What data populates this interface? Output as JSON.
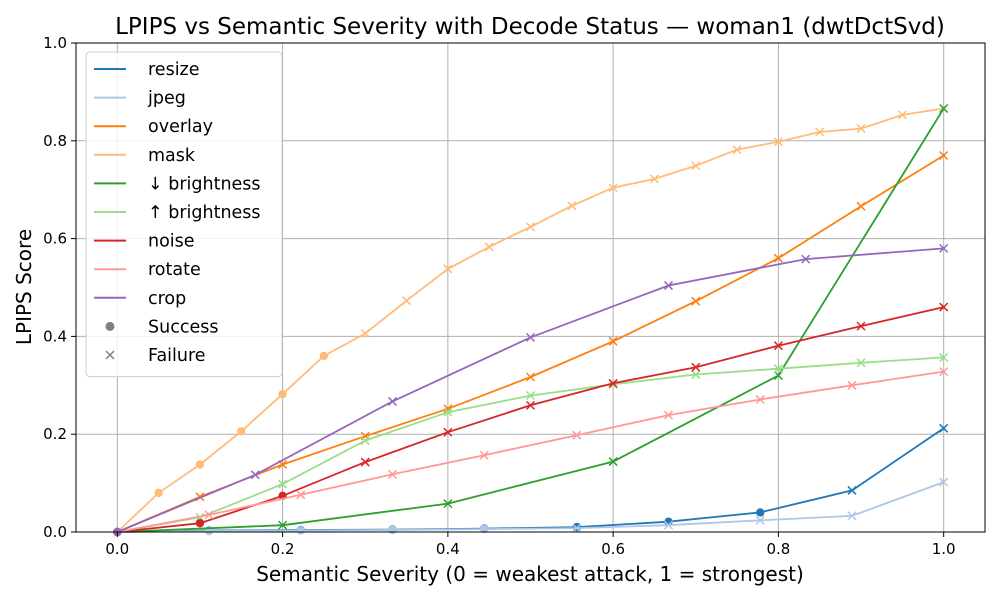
{
  "chart_data": {
    "type": "line",
    "title": "LPIPS vs Semantic Severity with Decode Status — woman1 (dwtDctSvd)",
    "xlabel": "Semantic Severity (0 = weakest attack, 1 = strongest)",
    "ylabel": "LPIPS Score",
    "xlim": [
      -0.05,
      1.05
    ],
    "ylim": [
      0.0,
      1.0
    ],
    "xticks": [
      "0.0",
      "0.2",
      "0.4",
      "0.6",
      "0.8",
      "1.0"
    ],
    "yticks": [
      "0.0",
      "0.2",
      "0.4",
      "0.6",
      "0.8",
      "1.0"
    ],
    "grid": true,
    "legend_position": "top-left",
    "marker_legend": [
      {
        "label": "Success",
        "marker": "circle"
      },
      {
        "label": "Failure",
        "marker": "x"
      }
    ],
    "series": [
      {
        "name": "resize",
        "color": "#1f77b4",
        "points": [
          {
            "x": 0.0,
            "y": 0.0,
            "status": "success"
          },
          {
            "x": 0.111,
            "y": 0.003,
            "status": "success"
          },
          {
            "x": 0.222,
            "y": 0.004,
            "status": "success"
          },
          {
            "x": 0.333,
            "y": 0.005,
            "status": "success"
          },
          {
            "x": 0.444,
            "y": 0.007,
            "status": "success"
          },
          {
            "x": 0.556,
            "y": 0.01,
            "status": "success"
          },
          {
            "x": 0.667,
            "y": 0.021,
            "status": "success"
          },
          {
            "x": 0.778,
            "y": 0.04,
            "status": "success"
          },
          {
            "x": 0.889,
            "y": 0.085,
            "status": "failure"
          },
          {
            "x": 1.0,
            "y": 0.212,
            "status": "failure"
          }
        ]
      },
      {
        "name": "jpeg",
        "color": "#aec7e8",
        "points": [
          {
            "x": 0.0,
            "y": 0.0,
            "status": "success"
          },
          {
            "x": 0.111,
            "y": 0.002,
            "status": "success"
          },
          {
            "x": 0.222,
            "y": 0.003,
            "status": "success"
          },
          {
            "x": 0.333,
            "y": 0.004,
            "status": "success"
          },
          {
            "x": 0.444,
            "y": 0.006,
            "status": "success"
          },
          {
            "x": 0.556,
            "y": 0.008,
            "status": "failure"
          },
          {
            "x": 0.667,
            "y": 0.014,
            "status": "failure"
          },
          {
            "x": 0.778,
            "y": 0.024,
            "status": "failure"
          },
          {
            "x": 0.889,
            "y": 0.033,
            "status": "failure"
          },
          {
            "x": 1.0,
            "y": 0.102,
            "status": "failure"
          }
        ]
      },
      {
        "name": "overlay",
        "color": "#ff7f0e",
        "points": [
          {
            "x": 0.0,
            "y": 0.0,
            "status": "success"
          },
          {
            "x": 0.1,
            "y": 0.072,
            "status": "failure"
          },
          {
            "x": 0.2,
            "y": 0.138,
            "status": "failure"
          },
          {
            "x": 0.3,
            "y": 0.196,
            "status": "failure"
          },
          {
            "x": 0.4,
            "y": 0.252,
            "status": "failure"
          },
          {
            "x": 0.5,
            "y": 0.317,
            "status": "failure"
          },
          {
            "x": 0.6,
            "y": 0.39,
            "status": "failure"
          },
          {
            "x": 0.7,
            "y": 0.472,
            "status": "failure"
          },
          {
            "x": 0.8,
            "y": 0.56,
            "status": "failure"
          },
          {
            "x": 0.9,
            "y": 0.666,
            "status": "failure"
          },
          {
            "x": 1.0,
            "y": 0.77,
            "status": "failure"
          }
        ]
      },
      {
        "name": "mask",
        "color": "#ffbb78",
        "points": [
          {
            "x": 0.0,
            "y": 0.0,
            "status": "success"
          },
          {
            "x": 0.05,
            "y": 0.08,
            "status": "success"
          },
          {
            "x": 0.1,
            "y": 0.138,
            "status": "success"
          },
          {
            "x": 0.15,
            "y": 0.206,
            "status": "success"
          },
          {
            "x": 0.2,
            "y": 0.282,
            "status": "success"
          },
          {
            "x": 0.25,
            "y": 0.36,
            "status": "success"
          },
          {
            "x": 0.3,
            "y": 0.406,
            "status": "failure"
          },
          {
            "x": 0.35,
            "y": 0.473,
            "status": "failure"
          },
          {
            "x": 0.4,
            "y": 0.538,
            "status": "failure"
          },
          {
            "x": 0.45,
            "y": 0.583,
            "status": "failure"
          },
          {
            "x": 0.5,
            "y": 0.624,
            "status": "failure"
          },
          {
            "x": 0.55,
            "y": 0.667,
            "status": "failure"
          },
          {
            "x": 0.6,
            "y": 0.704,
            "status": "failure"
          },
          {
            "x": 0.65,
            "y": 0.722,
            "status": "failure"
          },
          {
            "x": 0.7,
            "y": 0.749,
            "status": "failure"
          },
          {
            "x": 0.75,
            "y": 0.782,
            "status": "failure"
          },
          {
            "x": 0.8,
            "y": 0.798,
            "status": "failure"
          },
          {
            "x": 0.85,
            "y": 0.818,
            "status": "failure"
          },
          {
            "x": 0.9,
            "y": 0.825,
            "status": "failure"
          },
          {
            "x": 0.95,
            "y": 0.853,
            "status": "failure"
          },
          {
            "x": 1.0,
            "y": 0.866,
            "status": "failure"
          }
        ]
      },
      {
        "name": "↓ brightness",
        "color": "#2ca02c",
        "points": [
          {
            "x": 0.0,
            "y": 0.0,
            "status": "success"
          },
          {
            "x": 0.2,
            "y": 0.014,
            "status": "failure"
          },
          {
            "x": 0.4,
            "y": 0.058,
            "status": "failure"
          },
          {
            "x": 0.6,
            "y": 0.144,
            "status": "failure"
          },
          {
            "x": 0.8,
            "y": 0.32,
            "status": "failure"
          },
          {
            "x": 1.0,
            "y": 0.866,
            "status": "failure"
          }
        ]
      },
      {
        "name": "↑ brightness",
        "color": "#98df8a",
        "points": [
          {
            "x": 0.0,
            "y": 0.0,
            "status": "success"
          },
          {
            "x": 0.1,
            "y": 0.03,
            "status": "failure"
          },
          {
            "x": 0.2,
            "y": 0.098,
            "status": "failure"
          },
          {
            "x": 0.3,
            "y": 0.187,
            "status": "failure"
          },
          {
            "x": 0.4,
            "y": 0.245,
            "status": "failure"
          },
          {
            "x": 0.5,
            "y": 0.279,
            "status": "failure"
          },
          {
            "x": 0.6,
            "y": 0.302,
            "status": "failure"
          },
          {
            "x": 0.7,
            "y": 0.322,
            "status": "failure"
          },
          {
            "x": 0.8,
            "y": 0.334,
            "status": "failure"
          },
          {
            "x": 0.9,
            "y": 0.346,
            "status": "failure"
          },
          {
            "x": 1.0,
            "y": 0.357,
            "status": "failure"
          }
        ]
      },
      {
        "name": "noise",
        "color": "#d62728",
        "points": [
          {
            "x": 0.0,
            "y": 0.0,
            "status": "success"
          },
          {
            "x": 0.1,
            "y": 0.018,
            "status": "success"
          },
          {
            "x": 0.2,
            "y": 0.074,
            "status": "success"
          },
          {
            "x": 0.3,
            "y": 0.143,
            "status": "failure"
          },
          {
            "x": 0.4,
            "y": 0.204,
            "status": "failure"
          },
          {
            "x": 0.5,
            "y": 0.259,
            "status": "failure"
          },
          {
            "x": 0.6,
            "y": 0.304,
            "status": "failure"
          },
          {
            "x": 0.7,
            "y": 0.337,
            "status": "failure"
          },
          {
            "x": 0.8,
            "y": 0.381,
            "status": "failure"
          },
          {
            "x": 0.9,
            "y": 0.421,
            "status": "failure"
          },
          {
            "x": 1.0,
            "y": 0.46,
            "status": "failure"
          }
        ]
      },
      {
        "name": "rotate",
        "color": "#ff9896",
        "points": [
          {
            "x": 0.0,
            "y": 0.0,
            "status": "success"
          },
          {
            "x": 0.111,
            "y": 0.035,
            "status": "failure"
          },
          {
            "x": 0.222,
            "y": 0.076,
            "status": "failure"
          },
          {
            "x": 0.333,
            "y": 0.118,
            "status": "failure"
          },
          {
            "x": 0.444,
            "y": 0.157,
            "status": "failure"
          },
          {
            "x": 0.556,
            "y": 0.198,
            "status": "failure"
          },
          {
            "x": 0.667,
            "y": 0.239,
            "status": "failure"
          },
          {
            "x": 0.778,
            "y": 0.271,
            "status": "failure"
          },
          {
            "x": 0.889,
            "y": 0.3,
            "status": "failure"
          },
          {
            "x": 1.0,
            "y": 0.328,
            "status": "failure"
          }
        ]
      },
      {
        "name": "crop",
        "color": "#9467bd",
        "points": [
          {
            "x": 0.0,
            "y": 0.0,
            "status": "success"
          },
          {
            "x": 0.167,
            "y": 0.117,
            "status": "failure"
          },
          {
            "x": 0.333,
            "y": 0.267,
            "status": "failure"
          },
          {
            "x": 0.5,
            "y": 0.398,
            "status": "failure"
          },
          {
            "x": 0.667,
            "y": 0.504,
            "status": "failure"
          },
          {
            "x": 0.833,
            "y": 0.558,
            "status": "failure"
          },
          {
            "x": 1.0,
            "y": 0.58,
            "status": "failure"
          }
        ]
      }
    ]
  }
}
